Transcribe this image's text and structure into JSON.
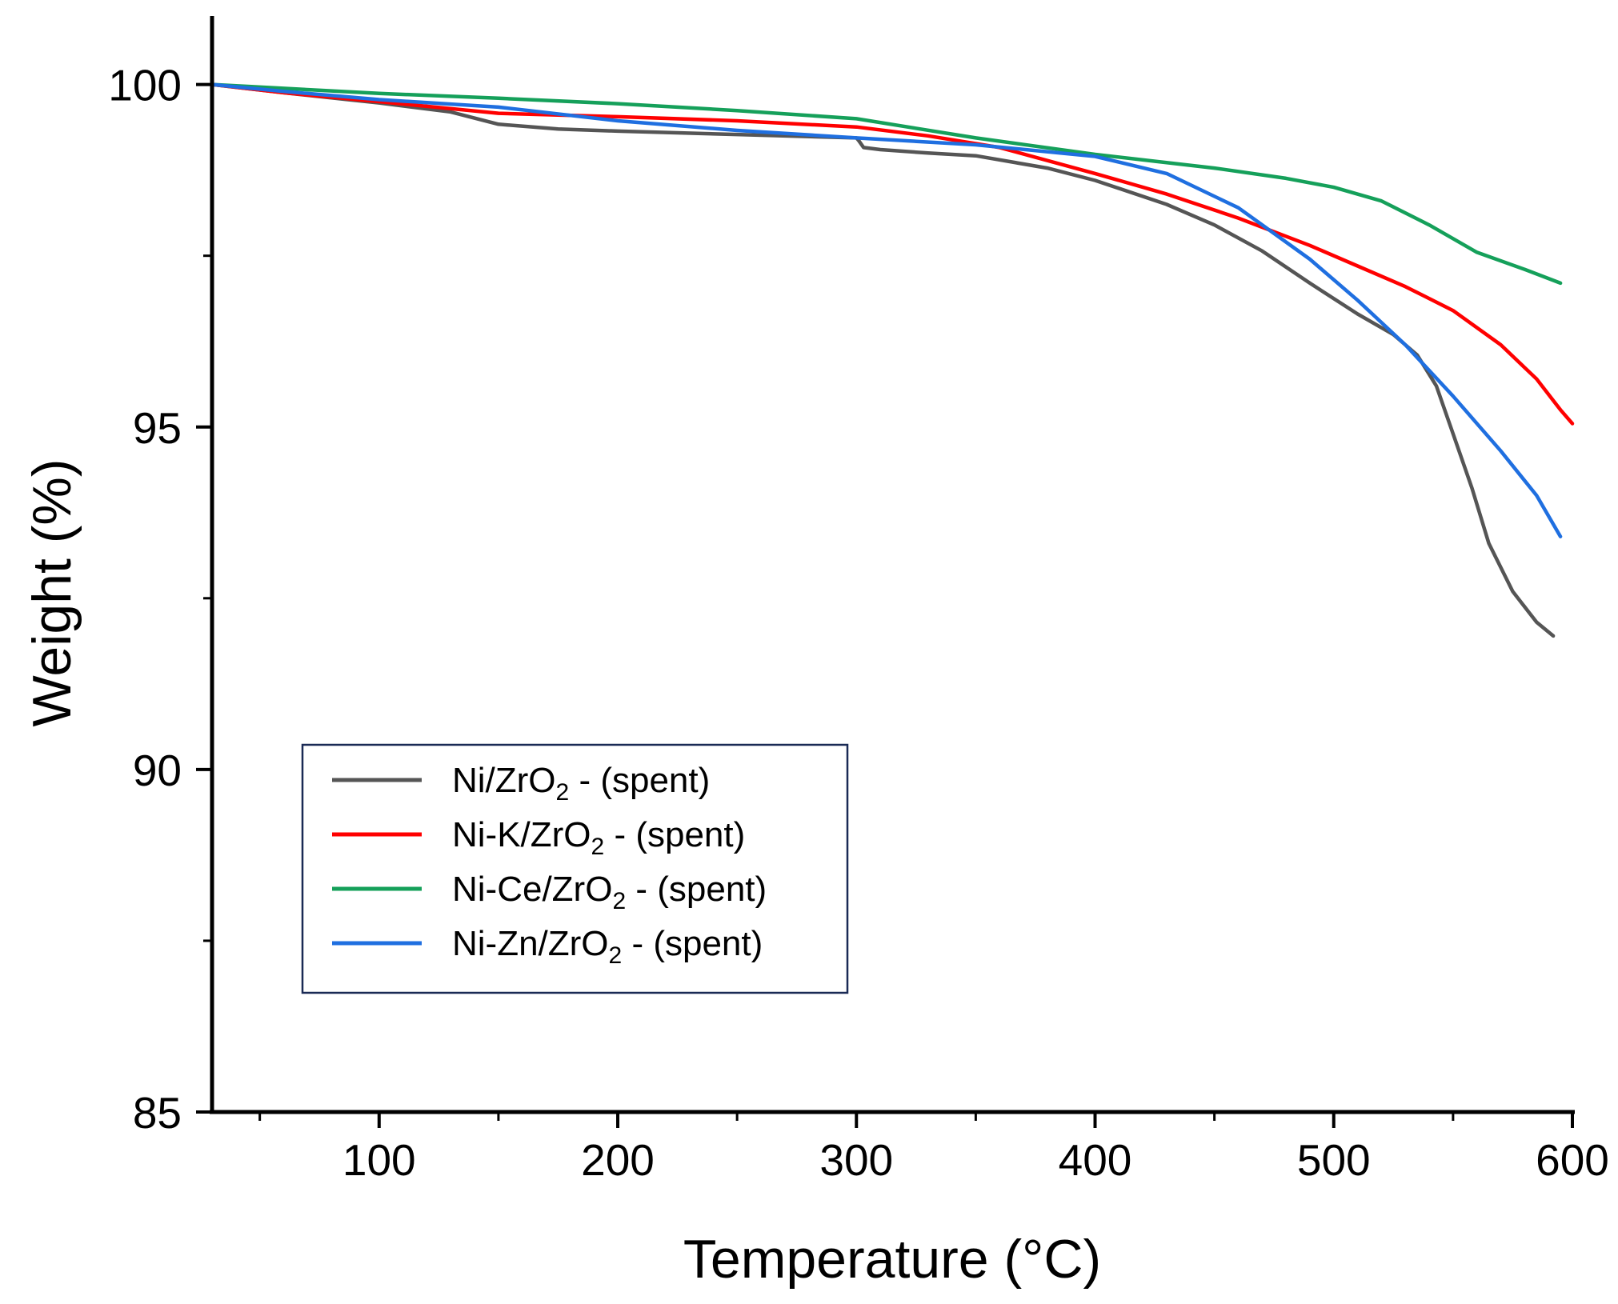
{
  "chart_data": {
    "type": "line",
    "title": "",
    "xlabel": "Temperature (°C)",
    "ylabel": "Weight (%)",
    "xlim": [
      30,
      600
    ],
    "ylim": [
      85,
      101
    ],
    "xticks": [
      100,
      200,
      300,
      400,
      500,
      600
    ],
    "xminor": [
      50,
      150,
      250,
      350,
      450,
      550
    ],
    "yticks": [
      85,
      90,
      95,
      100
    ],
    "yminor": [
      87.5,
      92.5,
      97.5
    ],
    "legend_position": "lower-left",
    "series": [
      {
        "name": "Ni/ZrO2 - (spent)",
        "label_main": "Ni/ZrO",
        "label_sub": "2",
        "label_suffix": " - (spent)",
        "color": "#555555",
        "points": [
          [
            30,
            100
          ],
          [
            60,
            99.88
          ],
          [
            100,
            99.73
          ],
          [
            130,
            99.6
          ],
          [
            150,
            99.42
          ],
          [
            175,
            99.35
          ],
          [
            200,
            99.32
          ],
          [
            250,
            99.27
          ],
          [
            300,
            99.22
          ],
          [
            301,
            99.18
          ],
          [
            303,
            99.08
          ],
          [
            310,
            99.05
          ],
          [
            330,
            99.0
          ],
          [
            350,
            98.96
          ],
          [
            380,
            98.78
          ],
          [
            400,
            98.6
          ],
          [
            430,
            98.25
          ],
          [
            450,
            97.95
          ],
          [
            470,
            97.57
          ],
          [
            490,
            97.1
          ],
          [
            510,
            96.65
          ],
          [
            525,
            96.35
          ],
          [
            535,
            96.05
          ],
          [
            543,
            95.6
          ],
          [
            550,
            94.9
          ],
          [
            558,
            94.1
          ],
          [
            565,
            93.3
          ],
          [
            575,
            92.6
          ],
          [
            585,
            92.15
          ],
          [
            592,
            91.95
          ]
        ]
      },
      {
        "name": "Ni-K/ZrO2 - (spent)",
        "label_main": "Ni-K/ZrO",
        "label_sub": "2",
        "label_suffix": " - (spent)",
        "color": "#ff0000",
        "points": [
          [
            30,
            100
          ],
          [
            60,
            99.88
          ],
          [
            100,
            99.75
          ],
          [
            150,
            99.58
          ],
          [
            200,
            99.53
          ],
          [
            250,
            99.47
          ],
          [
            300,
            99.38
          ],
          [
            330,
            99.25
          ],
          [
            360,
            99.08
          ],
          [
            400,
            98.7
          ],
          [
            430,
            98.4
          ],
          [
            460,
            98.05
          ],
          [
            490,
            97.65
          ],
          [
            510,
            97.35
          ],
          [
            530,
            97.05
          ],
          [
            550,
            96.7
          ],
          [
            570,
            96.2
          ],
          [
            585,
            95.7
          ],
          [
            595,
            95.25
          ],
          [
            600,
            95.05
          ]
        ]
      },
      {
        "name": "Ni-Ce/ZrO2 - (spent)",
        "label_main": "Ni-Ce/ZrO",
        "label_sub": "2",
        "label_suffix": " - (spent)",
        "color": "#15a05a",
        "points": [
          [
            30,
            100
          ],
          [
            100,
            99.87
          ],
          [
            150,
            99.8
          ],
          [
            200,
            99.72
          ],
          [
            250,
            99.62
          ],
          [
            300,
            99.5
          ],
          [
            350,
            99.22
          ],
          [
            400,
            98.98
          ],
          [
            450,
            98.78
          ],
          [
            480,
            98.63
          ],
          [
            500,
            98.5
          ],
          [
            520,
            98.3
          ],
          [
            540,
            97.95
          ],
          [
            560,
            97.55
          ],
          [
            580,
            97.3
          ],
          [
            595,
            97.1
          ]
        ]
      },
      {
        "name": "Ni-Zn/ZrO2 - (spent)",
        "label_main": "Ni-Zn/ZrO",
        "label_sub": "2",
        "label_suffix": " - (spent)",
        "color": "#1f6fe0",
        "points": [
          [
            30,
            100
          ],
          [
            60,
            99.9
          ],
          [
            100,
            99.78
          ],
          [
            150,
            99.67
          ],
          [
            200,
            99.47
          ],
          [
            250,
            99.33
          ],
          [
            300,
            99.22
          ],
          [
            350,
            99.12
          ],
          [
            400,
            98.95
          ],
          [
            430,
            98.7
          ],
          [
            460,
            98.2
          ],
          [
            490,
            97.45
          ],
          [
            510,
            96.85
          ],
          [
            530,
            96.2
          ],
          [
            550,
            95.45
          ],
          [
            570,
            94.65
          ],
          [
            585,
            94.0
          ],
          [
            595,
            93.4
          ]
        ]
      }
    ]
  }
}
